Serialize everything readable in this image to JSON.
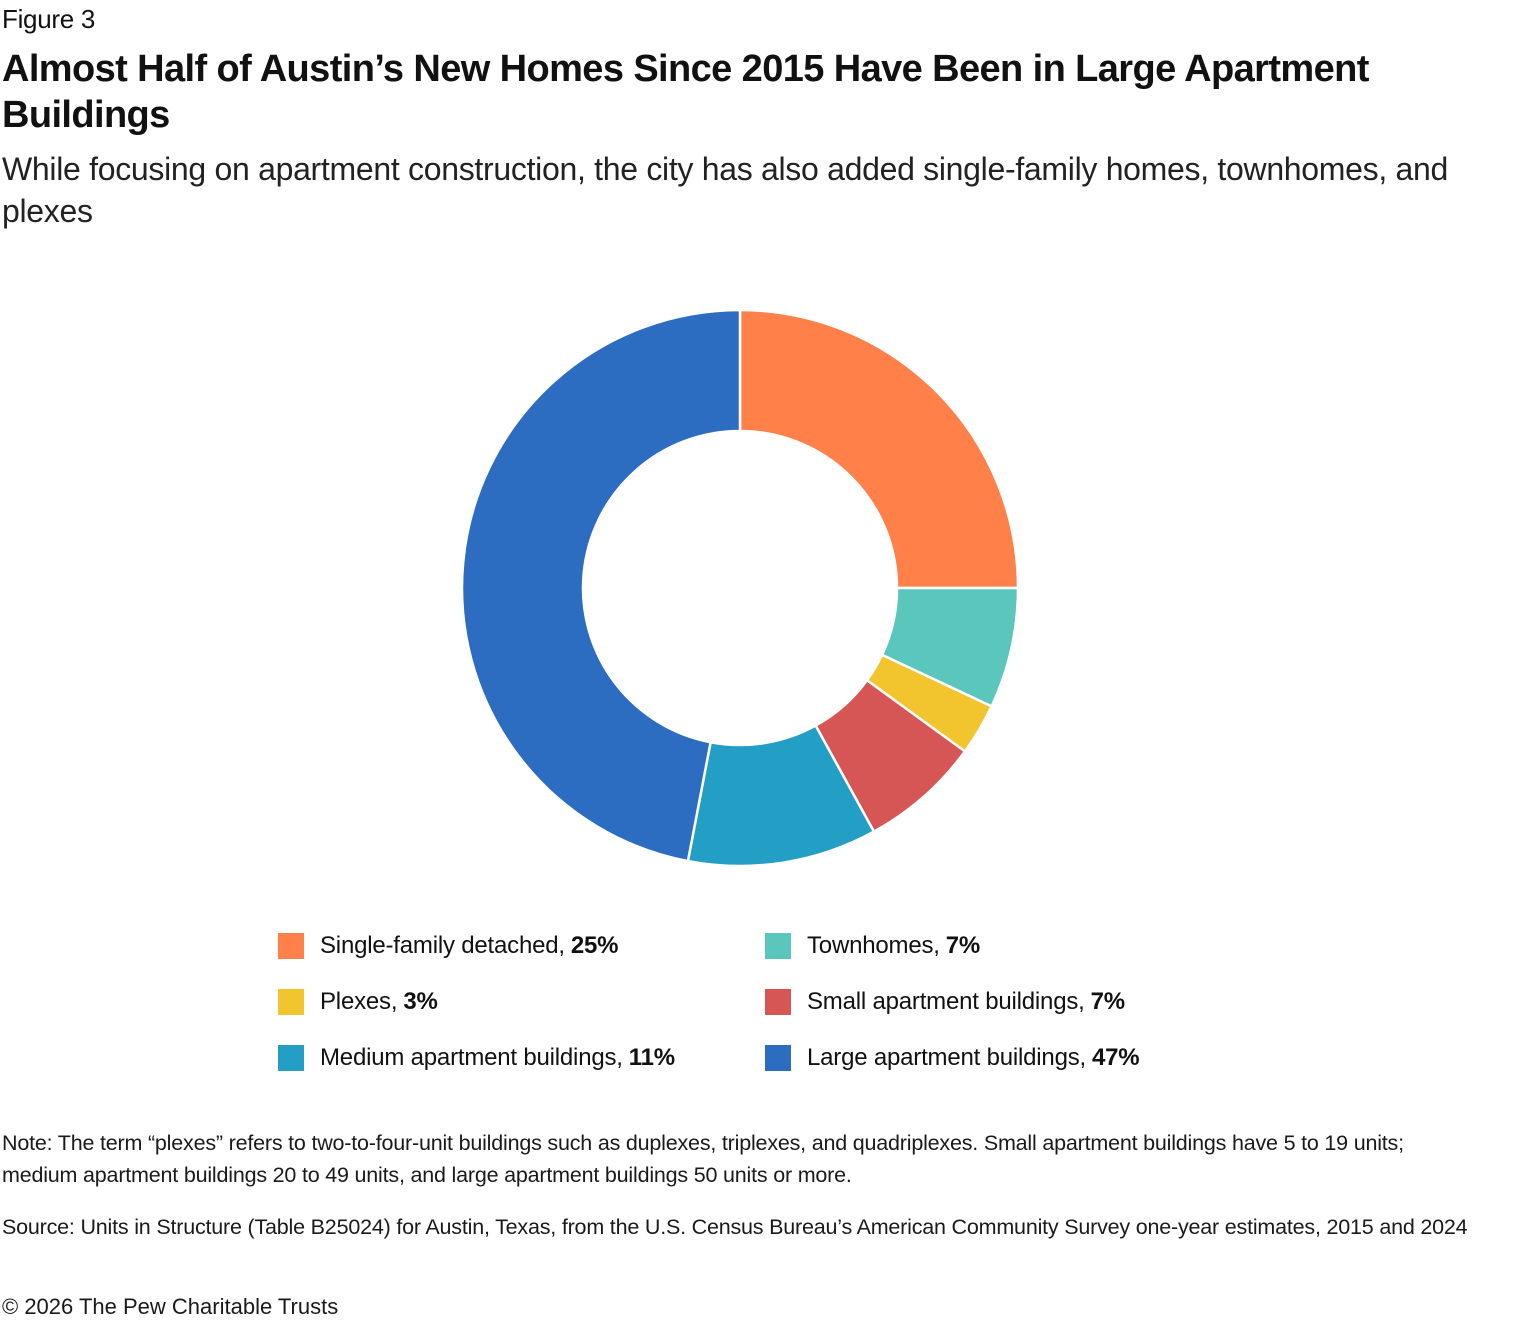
{
  "figure_label": "Figure 3",
  "title": "Almost Half of Austin’s New Homes Since 2015 Have Been in Large Apartment Buildings",
  "subtitle": "While focusing on apartment construction, the city has also added single-family homes, townhomes, and plexes",
  "legend": [
    {
      "label": "Single-family detached,",
      "value": "25%",
      "color": "#FF8048"
    },
    {
      "label": "Townhomes,",
      "value": "7%",
      "color": "#5BC7BC"
    },
    {
      "label": "Plexes,",
      "value": "3%",
      "color": "#F2C42E"
    },
    {
      "label": "Small apartment buildings,",
      "value": "7%",
      "color": "#D65555"
    },
    {
      "label": "Medium apartment buildings,",
      "value": "11%",
      "color": "#239FC6"
    },
    {
      "label": "Large apartment buildings,",
      "value": "47%",
      "color": "#2C6DC2"
    }
  ],
  "note": "Note: The term “plexes” refers to two-to-four-unit buildings such as duplexes, triplexes, and quadriplexes. Small apartment buildings have 5 to 19 units; medium apartment buildings 20 to 49 units, and large apartment buildings 50 units or more.",
  "source": "Source: Units in Structure (Table B25024) for Austin, Texas, from the U.S. Census Bureau’s American Community Survey one-year estimates, 2015 and 2024",
  "copyright": "© 2026 The Pew Charitable Trusts",
  "chart_data": {
    "type": "pie",
    "variant": "donut",
    "title": "Almost Half of Austin’s New Homes Since 2015 Have Been in Large Apartment Buildings",
    "subtitle": "While focusing on apartment construction, the city has also added single-family homes, townhomes, and plexes",
    "categories": [
      "Single-family detached",
      "Townhomes",
      "Plexes",
      "Small apartment buildings",
      "Medium apartment buildings",
      "Large apartment buildings"
    ],
    "values": [
      25,
      7,
      3,
      7,
      11,
      47
    ],
    "unit": "%",
    "colors": [
      "#FF8048",
      "#5BC7BC",
      "#F2C42E",
      "#D65555",
      "#239FC6",
      "#2C6DC2"
    ],
    "start_angle": "12 o'clock",
    "direction": "clockwise",
    "legend_position": "bottom"
  }
}
